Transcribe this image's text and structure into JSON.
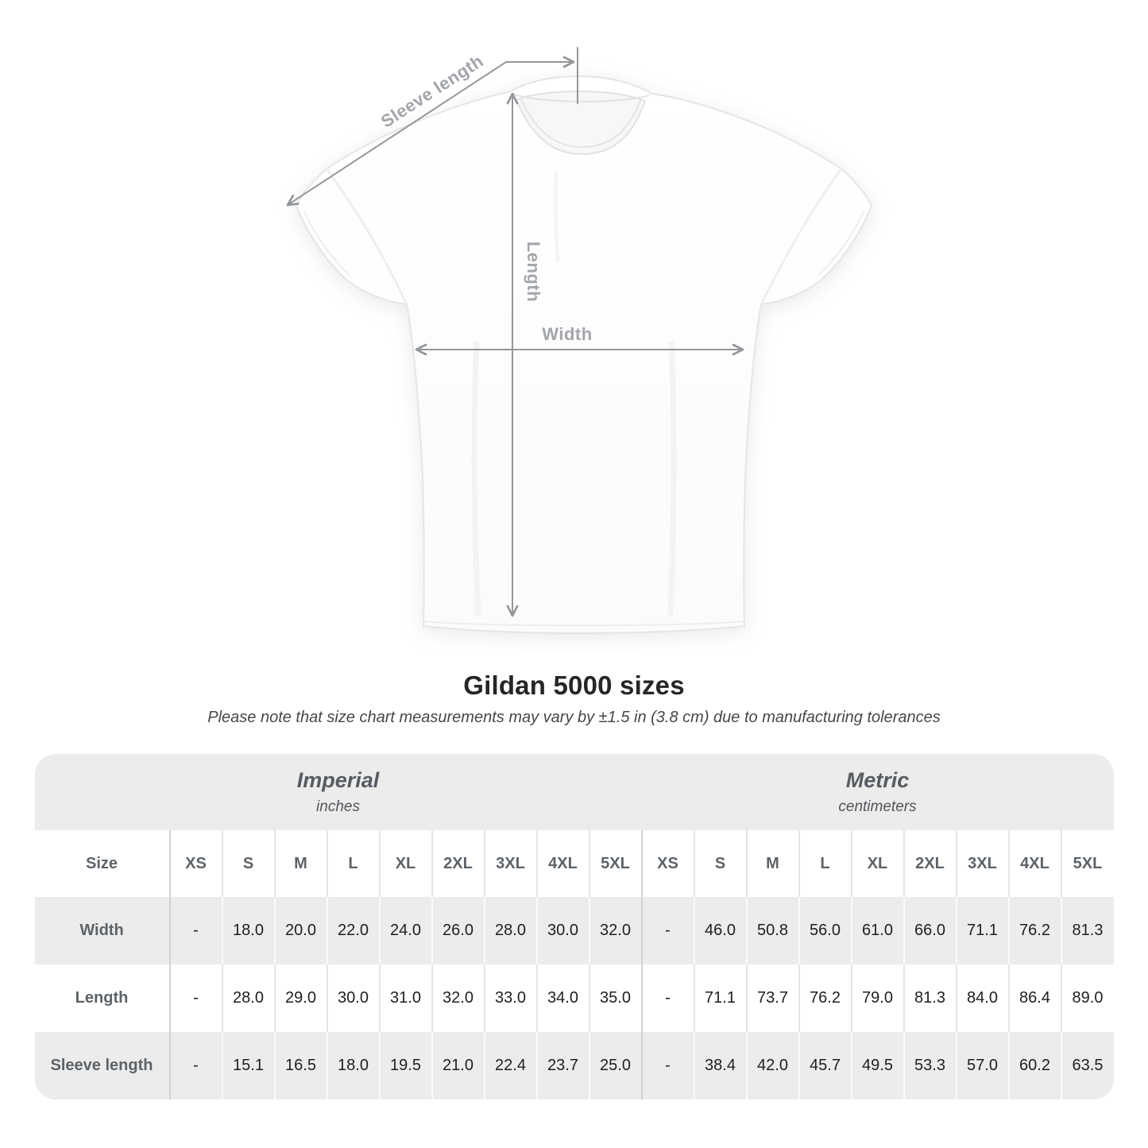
{
  "diagram": {
    "sleeve_length_label": "Sleeve length",
    "length_label": "Length",
    "width_label": "Width"
  },
  "chart_data": {
    "type": "table",
    "title": "Gildan 5000 sizes",
    "subtitle": "Please note that size chart measurements may vary by ±1.5 in (3.8 cm) due to manufacturing tolerances",
    "size_header_label": "Size",
    "sections": [
      {
        "label": "Imperial",
        "unit": "inches"
      },
      {
        "label": "Metric",
        "unit": "centimeters"
      }
    ],
    "sizes": [
      "XS",
      "S",
      "M",
      "L",
      "XL",
      "2XL",
      "3XL",
      "4XL",
      "5XL"
    ],
    "rows": [
      {
        "label": "Width",
        "imperial": [
          "-",
          "18.0",
          "20.0",
          "22.0",
          "24.0",
          "26.0",
          "28.0",
          "30.0",
          "32.0"
        ],
        "metric": [
          "-",
          "46.0",
          "50.8",
          "56.0",
          "61.0",
          "66.0",
          "71.1",
          "76.2",
          "81.3"
        ]
      },
      {
        "label": "Length",
        "imperial": [
          "-",
          "28.0",
          "29.0",
          "30.0",
          "31.0",
          "32.0",
          "33.0",
          "34.0",
          "35.0"
        ],
        "metric": [
          "-",
          "71.1",
          "73.7",
          "76.2",
          "79.0",
          "81.3",
          "84.0",
          "86.4",
          "89.0"
        ]
      },
      {
        "label": "Sleeve length",
        "imperial": [
          "-",
          "15.1",
          "16.5",
          "18.0",
          "19.5",
          "21.0",
          "22.4",
          "23.7",
          "25.0"
        ],
        "metric": [
          "-",
          "38.4",
          "42.0",
          "45.7",
          "49.5",
          "53.3",
          "57.0",
          "60.2",
          "63.5"
        ]
      }
    ]
  },
  "colors": {
    "arrow": "#94979a",
    "dim_label": "#a2a5a9",
    "band_bg": "#ececec",
    "row_shade_bg": "#ececec",
    "data_text": "#1e1f21",
    "header_text": "#5d6368"
  }
}
